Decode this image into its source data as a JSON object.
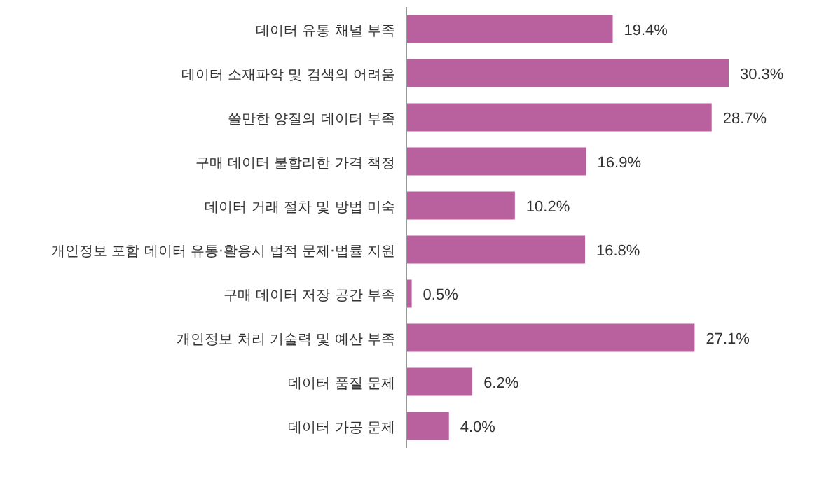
{
  "chart_data": {
    "type": "bar",
    "orientation": "horizontal",
    "color": "#b9609f",
    "categories": [
      "데이터 유통 채널 부족",
      "데이터 소재파악 및 검색의 어려움",
      "쓸만한 양질의 데이터 부족",
      "구매 데이터 불합리한 가격 책정",
      "데이터 거래 절차 및 방법 미숙",
      "개인정보 포함 데이터 유통·활용시 법적 문제·법률 지원",
      "구매 데이터 저장 공간 부족",
      "개인정보 처리 기술력 및 예산 부족",
      "데이터 품질 문제",
      "데이터 가공 문제"
    ],
    "values": [
      19.4,
      30.3,
      28.7,
      16.9,
      10.2,
      16.8,
      0.5,
      27.1,
      6.2,
      4.0
    ],
    "value_labels": [
      "19.4%",
      "30.3%",
      "28.7%",
      "16.9%",
      "10.2%",
      "16.8%",
      "0.5%",
      "27.1%",
      "6.2%",
      "4.0%"
    ]
  }
}
